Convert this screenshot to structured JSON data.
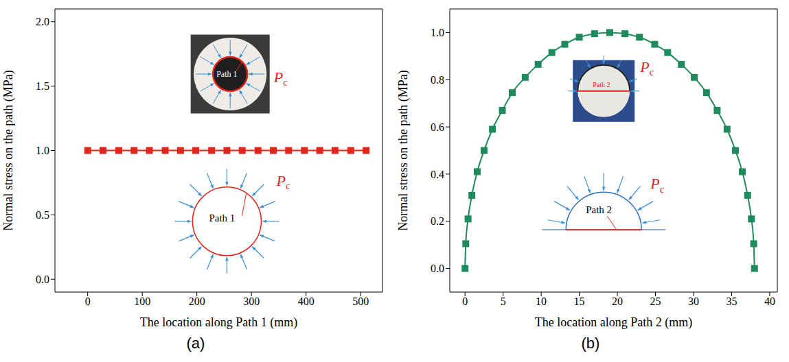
{
  "chart_data": [
    {
      "type": "line",
      "panel_label": "(a)",
      "x_label": "The location along Path 1 (mm)",
      "y_label": "Normal stress on the path (MPa)",
      "x": [
        0,
        28,
        57,
        85,
        113,
        142,
        170,
        198,
        227,
        255,
        283,
        312,
        340,
        368,
        397,
        425,
        453,
        482,
        510
      ],
      "values": [
        1.0,
        1.0,
        1.0,
        1.0,
        1.0,
        1.0,
        1.0,
        1.0,
        1.0,
        1.0,
        1.0,
        1.0,
        1.0,
        1.0,
        1.0,
        1.0,
        1.0,
        1.0,
        1.0
      ],
      "color": "#e3241b",
      "marker": "square",
      "xlim": [
        -60,
        540
      ],
      "xticks": [
        0,
        100,
        200,
        300,
        400,
        500
      ],
      "ylim": [
        -0.1,
        2.1
      ],
      "yticks": [
        {
          "value": 0,
          "label": "0.0"
        },
        {
          "value": 0.5,
          "label": "0.5"
        },
        {
          "value": 1,
          "label": "1.0"
        },
        {
          "value": 1.5,
          "label": "1.5"
        },
        {
          "value": 2,
          "label": "2.0"
        }
      ],
      "insets": {
        "path_label": "Path 1",
        "pressure_symbol": "P",
        "pressure_subscript": "c"
      }
    },
    {
      "type": "line",
      "panel_label": "(b)",
      "x_label": "The location along Path 2 (mm)",
      "y_label": "Normal stress on the path (MPa)",
      "x": [
        0,
        0.1,
        0.4,
        0.9,
        1.6,
        2.5,
        3.6,
        4.9,
        6.2,
        7.9,
        9.6,
        11.4,
        13.1,
        15.0,
        17.0,
        19.0,
        21.0,
        22.9,
        24.9,
        26.6,
        28.4,
        30.1,
        31.7,
        33.1,
        34.4,
        35.5,
        36.4,
        37.1,
        37.6,
        37.9,
        38
      ],
      "values": [
        0,
        0.105,
        0.21,
        0.31,
        0.41,
        0.5,
        0.59,
        0.67,
        0.745,
        0.81,
        0.865,
        0.915,
        0.95,
        0.98,
        0.995,
        1.0,
        0.995,
        0.98,
        0.95,
        0.915,
        0.865,
        0.81,
        0.745,
        0.67,
        0.59,
        0.5,
        0.41,
        0.31,
        0.21,
        0.105,
        0
      ],
      "color": "#1f8a5b",
      "marker": "square",
      "xlim": [
        -2,
        41
      ],
      "xticks": [
        0,
        5,
        10,
        15,
        20,
        25,
        30,
        35,
        40
      ],
      "ylim": [
        -0.1,
        1.1
      ],
      "yticks": [
        {
          "value": 0,
          "label": "0.0"
        },
        {
          "value": 0.2,
          "label": "0.2"
        },
        {
          "value": 0.4,
          "label": "0.4"
        },
        {
          "value": 0.6,
          "label": "0.6"
        },
        {
          "value": 0.8,
          "label": "0.8"
        },
        {
          "value": 1,
          "label": "1.0"
        }
      ],
      "insets": {
        "path_label": "Path 2",
        "pressure_symbol": "P",
        "pressure_subscript": "c"
      }
    }
  ]
}
